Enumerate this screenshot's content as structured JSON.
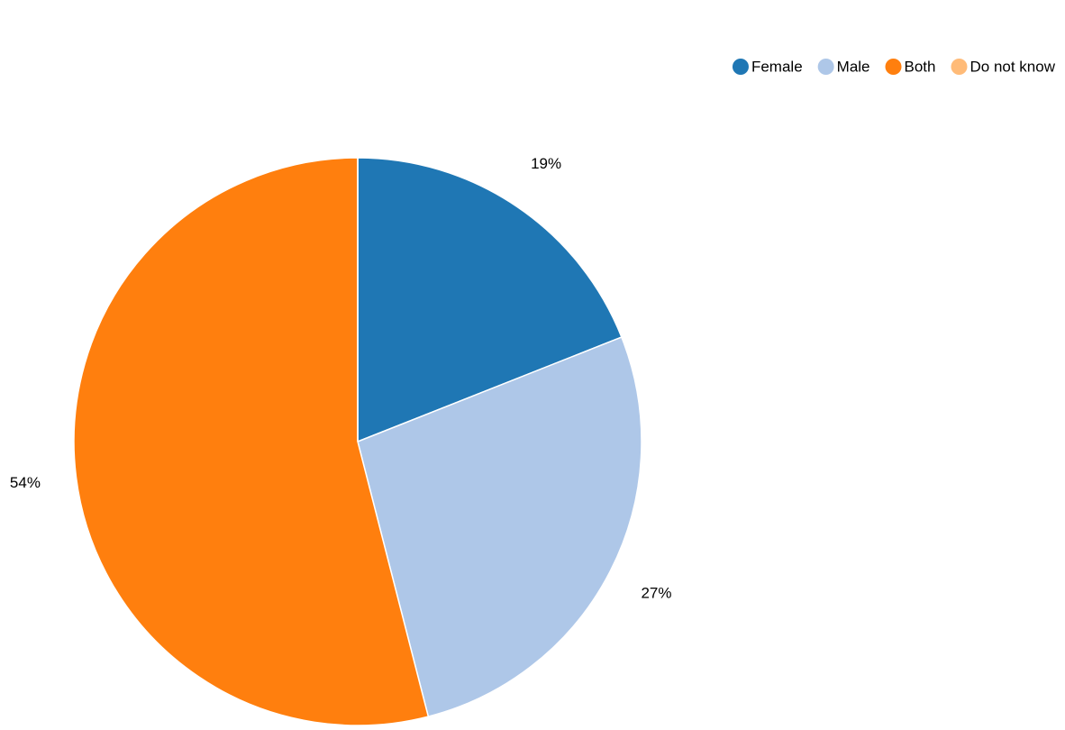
{
  "chart_data": {
    "type": "pie",
    "categories": [
      "Female",
      "Male",
      "Both",
      "Do not know"
    ],
    "values": [
      19,
      27,
      54,
      0
    ],
    "value_labels": [
      "19%",
      "27%",
      "54%",
      null
    ],
    "colors": [
      "#1f77b4",
      "#aec7e8",
      "#ff7f0e",
      "#ffbb78"
    ],
    "legend": "top-right"
  }
}
